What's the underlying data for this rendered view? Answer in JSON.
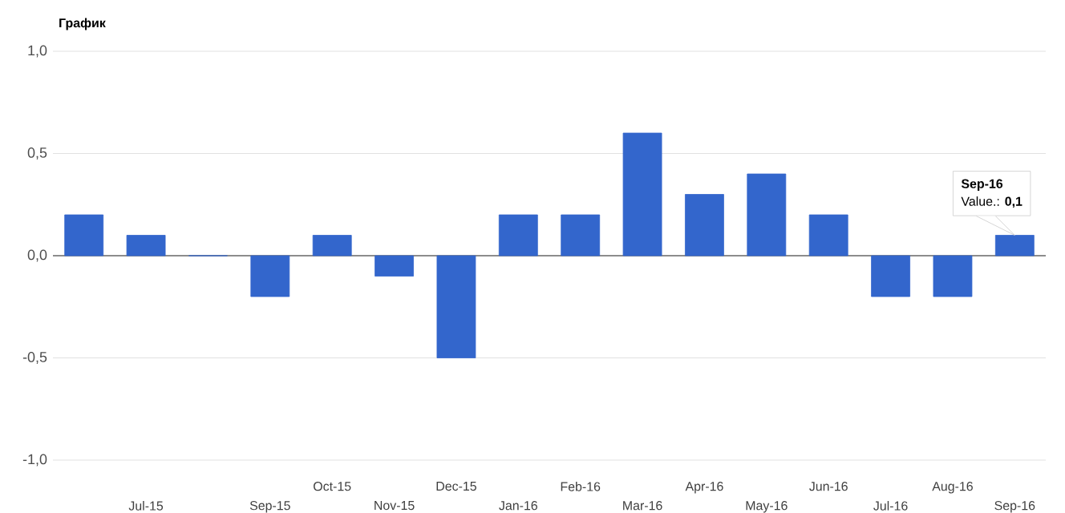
{
  "chart_data": {
    "type": "bar",
    "title": "График",
    "categories": [
      null,
      "Jul-15",
      null,
      "Sep-15",
      "Oct-15",
      "Nov-15",
      "Dec-15",
      "Jan-16",
      "Feb-16",
      "Mar-16",
      "Apr-16",
      "May-16",
      "Jun-16",
      "Jul-16",
      "Aug-16",
      "Sep-16"
    ],
    "values": [
      0.2,
      0.1,
      0,
      -0.2,
      0.1,
      -0.1,
      -0.5,
      0.2,
      0.2,
      0.6,
      0.3,
      0.4,
      0.2,
      -0.2,
      -0.2,
      0.1
    ],
    "color": "#3366cc",
    "ylim": [
      -1,
      1
    ],
    "yticks": [
      {
        "value": -1,
        "label": "-1,0"
      },
      {
        "value": -0.5,
        "label": "-0,5"
      },
      {
        "value": 0,
        "label": "0,0"
      },
      {
        "value": 0.5,
        "label": "0,5"
      },
      {
        "value": 1,
        "label": "1,0"
      }
    ],
    "grid": "y",
    "annotations": [
      "Sep-16",
      {
        "text": "Value.: **0,1**",
        "x": "Sep-16",
        "y": 0.1
      }
    ]
  }
}
